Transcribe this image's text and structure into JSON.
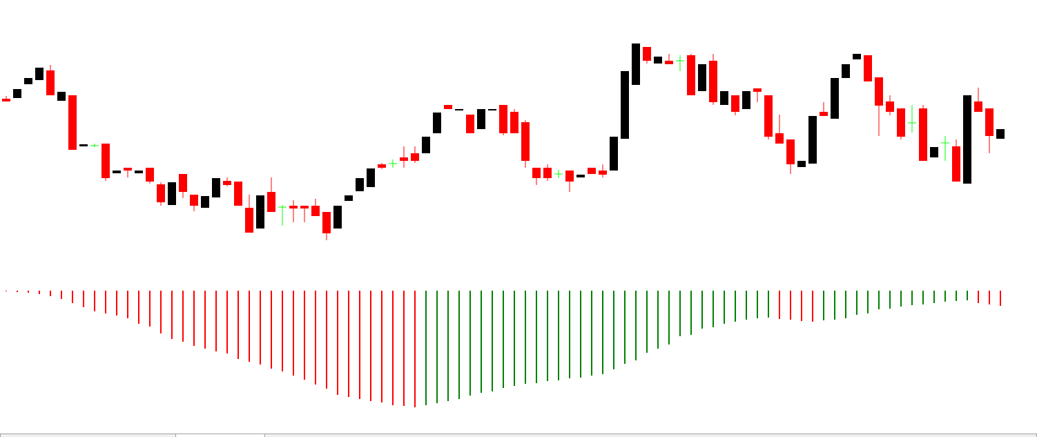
{
  "chart_data": [
    {
      "type": "candlestick",
      "ylim": [
        0,
        400
      ],
      "up_color": "#000000",
      "down_color": "#ff0000",
      "doji_color": "#00ff00",
      "open": [
        257,
        258,
        278,
        284,
        298,
        254,
        262,
        188,
        189,
        192,
        149,
        157,
        149,
        157,
        133,
        103,
        148,
        118,
        99,
        114,
        138,
        137,
        99,
        69,
        122,
        100,
        102,
        102,
        102,
        93,
        69,
        109,
        123,
        129,
        162,
        163,
        172,
        178,
        178,
        207,
        248,
        240,
        234,
        213,
        240,
        248,
        238,
        223,
        157,
        157,
        148,
        153,
        143,
        157,
        153,
        153,
        199,
        277,
        332,
        308,
        312,
        312,
        320,
        268,
        312,
        248,
        262,
        242,
        272,
        262,
        207,
        198,
        158,
        163,
        238,
        228,
        287,
        314,
        320,
        288,
        253,
        243,
        222,
        243,
        172,
        193,
        188,
        134,
        253,
        243,
        199
      ],
      "high": [
        261,
        271,
        287,
        302,
        306,
        267,
        262,
        191,
        192,
        192,
        153,
        157,
        153,
        157,
        136,
        136,
        148,
        118,
        116,
        142,
        143,
        137,
        118,
        117,
        143,
        103,
        110,
        102,
        112,
        93,
        102,
        117,
        142,
        156,
        164,
        169,
        188,
        188,
        202,
        237,
        248,
        242,
        234,
        242,
        242,
        248,
        242,
        226,
        157,
        162,
        154,
        153,
        147,
        157,
        162,
        202,
        297,
        337,
        332,
        318,
        322,
        320,
        322,
        307,
        322,
        268,
        262,
        268,
        272,
        262,
        234,
        198,
        167,
        232,
        252,
        287,
        307,
        322,
        320,
        288,
        262,
        243,
        248,
        248,
        187,
        203,
        198,
        262,
        273,
        243,
        213
      ],
      "low": [
        253,
        258,
        278,
        284,
        262,
        254,
        183,
        188,
        187,
        138,
        149,
        143,
        149,
        134,
        102,
        103,
        113,
        94,
        99,
        114,
        130,
        102,
        63,
        69,
        93,
        73,
        78,
        78,
        87,
        52,
        69,
        109,
        123,
        129,
        155,
        157,
        157,
        164,
        178,
        207,
        242,
        240,
        207,
        213,
        240,
        204,
        207,
        157,
        132,
        138,
        142,
        122,
        143,
        148,
        143,
        153,
        199,
        277,
        308,
        308,
        307,
        297,
        262,
        268,
        248,
        248,
        233,
        242,
        252,
        198,
        192,
        148,
        158,
        163,
        232,
        228,
        287,
        314,
        282,
        203,
        233,
        198,
        208,
        167,
        172,
        167,
        137,
        134,
        238,
        178,
        199
      ],
      "close": [
        253,
        271,
        287,
        302,
        262,
        267,
        183,
        191,
        189,
        142,
        153,
        153,
        153,
        137,
        107,
        136,
        122,
        102,
        116,
        142,
        132,
        102,
        63,
        117,
        93,
        100,
        98,
        98,
        87,
        62,
        102,
        117,
        142,
        156,
        157,
        163,
        167,
        167,
        202,
        237,
        242,
        242,
        207,
        242,
        242,
        207,
        207,
        167,
        142,
        142,
        148,
        137,
        147,
        148,
        147,
        202,
        297,
        337,
        312,
        318,
        307,
        312,
        262,
        307,
        252,
        268,
        238,
        268,
        267,
        202,
        192,
        162,
        167,
        232,
        232,
        287,
        307,
        322,
        282,
        247,
        238,
        202,
        222,
        167,
        187,
        193,
        137,
        262,
        238,
        203,
        213
      ]
    },
    {
      "type": "histogram-oscillator",
      "ylim": [
        -174,
        16
      ],
      "up_color": "#008000",
      "down_color": "#ff0000",
      "values": [
        -1,
        -2,
        -3,
        -5,
        -8,
        -12,
        -18,
        -24,
        -30,
        -33,
        -36,
        -40,
        -48,
        -52,
        -62,
        -70,
        -74,
        -80,
        -84,
        -88,
        -91,
        -99,
        -103,
        -107,
        -113,
        -117,
        -123,
        -129,
        -136,
        -142,
        -151,
        -154,
        -157,
        -160,
        -162,
        -166,
        -167,
        -169,
        -166,
        -163,
        -160,
        -157,
        -152,
        -148,
        -146,
        -141,
        -138,
        -135,
        -134,
        -131,
        -130,
        -127,
        -126,
        -123,
        -121,
        -114,
        -106,
        -101,
        -90,
        -84,
        -78,
        -66,
        -64,
        -55,
        -53,
        -48,
        -45,
        -42,
        -40,
        -39,
        -41,
        -42,
        -44,
        -45,
        -43,
        -42,
        -40,
        -35,
        -33,
        -27,
        -26,
        -23,
        -21,
        -20,
        -18,
        -16,
        -15,
        -14,
        -18,
        -20,
        -22
      ]
    }
  ]
}
